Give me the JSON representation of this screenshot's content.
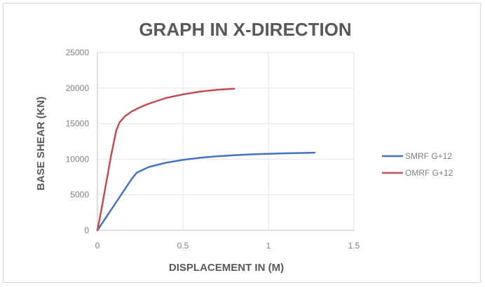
{
  "chart_data": {
    "type": "line",
    "title": "GRAPH IN X-DIRECTION",
    "xlabel": "DISPLACEMENT IN (M)",
    "ylabel": "BASE SHEAR (KN)",
    "xlim": [
      0,
      1.5
    ],
    "ylim": [
      0,
      25000
    ],
    "x_ticks": [
      "0",
      "0.5",
      "1",
      "1.5"
    ],
    "x_tick_values": [
      0,
      0.5,
      1,
      1.5
    ],
    "y_ticks": [
      "0",
      "5000",
      "10000",
      "15000",
      "20000",
      "25000"
    ],
    "y_tick_values": [
      0,
      5000,
      10000,
      15000,
      20000,
      25000
    ],
    "grid": true,
    "legend_position": "right",
    "series": [
      {
        "name": "SMRF G+12",
        "color": "#4472c4",
        "points": [
          [
            0,
            0
          ],
          [
            0.05,
            1800
          ],
          [
            0.1,
            3600
          ],
          [
            0.15,
            5400
          ],
          [
            0.2,
            7200
          ],
          [
            0.23,
            8100
          ],
          [
            0.3,
            8900
          ],
          [
            0.4,
            9500
          ],
          [
            0.5,
            9900
          ],
          [
            0.6,
            10200
          ],
          [
            0.7,
            10400
          ],
          [
            0.8,
            10550
          ],
          [
            0.9,
            10680
          ],
          [
            1.0,
            10760
          ],
          [
            1.1,
            10830
          ],
          [
            1.2,
            10880
          ],
          [
            1.27,
            10920
          ]
        ]
      },
      {
        "name": "OMRF G+12",
        "color": "#c0504d",
        "points": [
          [
            0,
            0
          ],
          [
            0.02,
            2500
          ],
          [
            0.05,
            6500
          ],
          [
            0.08,
            10500
          ],
          [
            0.11,
            14000
          ],
          [
            0.13,
            15200
          ],
          [
            0.16,
            16000
          ],
          [
            0.2,
            16700
          ],
          [
            0.25,
            17300
          ],
          [
            0.3,
            17800
          ],
          [
            0.4,
            18600
          ],
          [
            0.5,
            19100
          ],
          [
            0.6,
            19500
          ],
          [
            0.7,
            19750
          ],
          [
            0.8,
            19900
          ]
        ]
      }
    ]
  }
}
